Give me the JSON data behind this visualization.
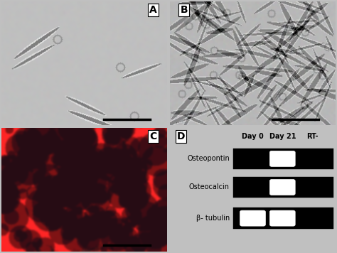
{
  "panel_labels": [
    "A",
    "B",
    "C",
    "D"
  ],
  "gel_row_labels": [
    "Osteopontin",
    "Osteocalcin",
    "β- tubulin"
  ],
  "gel_col_labels": [
    "Day 0",
    "Day 21",
    "RT-"
  ],
  "bg_gray": 0.78,
  "panel_a_bg": 0.75,
  "panel_b_bg": 0.72,
  "panel_label_fontsize": 10,
  "gel_label_fontsize": 7,
  "col_label_fontsize": 7,
  "bands_config": [
    [
      [
        0,
        false
      ],
      [
        1,
        true
      ],
      [
        2,
        false
      ]
    ],
    [
      [
        0,
        false
      ],
      [
        1,
        true
      ],
      [
        2,
        false
      ]
    ],
    [
      [
        0,
        true
      ],
      [
        1,
        true
      ],
      [
        2,
        false
      ]
    ]
  ]
}
